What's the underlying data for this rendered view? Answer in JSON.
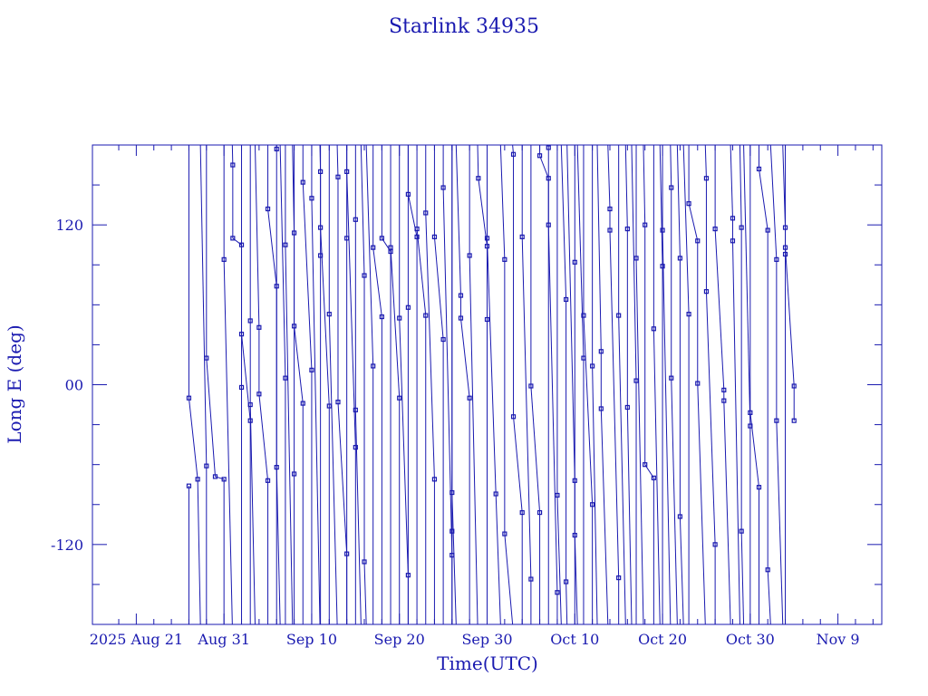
{
  "chart_data": {
    "type": "line",
    "title": "Starlink 34935",
    "xlabel": "Time(UTC)",
    "ylabel": "Long E (deg)",
    "xlim": [
      "2025-08-16",
      "2025-11-14"
    ],
    "ylim": [
      -180,
      180
    ],
    "x_ticks": [
      "2025 Aug 21",
      "Aug 31",
      "Sep 10",
      "Sep 20",
      "Sep 30",
      "Oct 10",
      "Oct 20",
      "Oct 30",
      "Nov 9"
    ],
    "y_ticks": [
      "-120",
      "00",
      "120"
    ],
    "color": "#1a1ab0",
    "grid": false,
    "series": [
      {
        "values": [
          [
            "2025-08-27",
            -76
          ],
          [
            "2025-08-27",
            -10
          ],
          [
            "2025-08-28",
            -71
          ],
          [
            "2025-08-29",
            -61
          ],
          [
            "2025-08-29",
            20
          ],
          [
            "2025-08-30",
            -69
          ],
          [
            "2025-08-31",
            -71
          ],
          [
            "2025-08-31",
            94
          ],
          [
            "2025-09-01",
            165
          ],
          [
            "2025-09-01",
            110
          ],
          [
            "2025-09-02",
            105
          ],
          [
            "2025-09-02",
            -2
          ],
          [
            "2025-09-02",
            38
          ],
          [
            "2025-09-03",
            -27
          ],
          [
            "2025-09-03",
            48
          ],
          [
            "2025-09-03",
            -15
          ],
          [
            "2025-09-04",
            43
          ],
          [
            "2025-09-04",
            -7
          ],
          [
            "2025-09-05",
            -72
          ],
          [
            "2025-09-05",
            132
          ],
          [
            "2025-09-06",
            74
          ],
          [
            "2025-09-06",
            177
          ],
          [
            "2025-09-06",
            -62
          ],
          [
            "2025-09-07",
            5
          ],
          [
            "2025-09-07",
            105
          ],
          [
            "2025-09-08",
            114
          ],
          [
            "2025-09-08",
            -67
          ],
          [
            "2025-09-08",
            44
          ],
          [
            "2025-09-09",
            -14
          ],
          [
            "2025-09-09",
            152
          ],
          [
            "2025-09-10",
            11
          ],
          [
            "2025-09-10",
            140
          ],
          [
            "2025-09-11",
            160
          ],
          [
            "2025-09-11",
            97
          ],
          [
            "2025-09-11",
            118
          ],
          [
            "2025-09-12",
            -16
          ],
          [
            "2025-09-12",
            53
          ],
          [
            "2025-09-13",
            156
          ],
          [
            "2025-09-13",
            -13
          ],
          [
            "2025-09-14",
            -127
          ],
          [
            "2025-09-14",
            110
          ],
          [
            "2025-09-14",
            160
          ],
          [
            "2025-09-15",
            -47
          ],
          [
            "2025-09-15",
            124
          ],
          [
            "2025-09-15",
            -19
          ],
          [
            "2025-09-16",
            82
          ],
          [
            "2025-09-16",
            -133
          ],
          [
            "2025-09-17",
            14
          ],
          [
            "2025-09-17",
            103
          ],
          [
            "2025-09-18",
            51
          ],
          [
            "2025-09-18",
            110
          ],
          [
            "2025-09-19",
            100
          ],
          [
            "2025-09-19",
            103
          ],
          [
            "2025-09-20",
            -10
          ],
          [
            "2025-09-20",
            50
          ],
          [
            "2025-09-21",
            -143
          ],
          [
            "2025-09-21",
            58
          ],
          [
            "2025-09-21",
            143
          ],
          [
            "2025-09-22",
            111
          ],
          [
            "2025-09-22",
            117
          ],
          [
            "2025-09-23",
            52
          ],
          [
            "2025-09-23",
            129
          ],
          [
            "2025-09-24",
            -71
          ],
          [
            "2025-09-24",
            111
          ],
          [
            "2025-09-25",
            34
          ],
          [
            "2025-09-25",
            148
          ],
          [
            "2025-09-26",
            -128
          ],
          [
            "2025-09-26",
            -110
          ],
          [
            "2025-09-26",
            -81
          ],
          [
            "2025-09-27",
            67
          ],
          [
            "2025-09-27",
            50
          ],
          [
            "2025-09-28",
            -10
          ],
          [
            "2025-09-28",
            97
          ],
          [
            "2025-09-29",
            155
          ],
          [
            "2025-09-30",
            104
          ],
          [
            "2025-09-30",
            49
          ],
          [
            "2025-09-30",
            110
          ],
          [
            "2025-10-01",
            -82
          ],
          [
            "2025-10-02",
            94
          ],
          [
            "2025-10-02",
            -112
          ],
          [
            "2025-10-03",
            173
          ],
          [
            "2025-10-03",
            -24
          ],
          [
            "2025-10-04",
            -96
          ],
          [
            "2025-10-04",
            111
          ],
          [
            "2025-10-05",
            -146
          ],
          [
            "2025-10-05",
            -1
          ],
          [
            "2025-10-06",
            -96
          ],
          [
            "2025-10-06",
            172
          ],
          [
            "2025-10-07",
            155
          ],
          [
            "2025-10-07",
            178
          ],
          [
            "2025-10-07",
            120
          ],
          [
            "2025-10-08",
            -156
          ],
          [
            "2025-10-08",
            -83
          ],
          [
            "2025-10-09",
            64
          ],
          [
            "2025-10-09",
            -148
          ],
          [
            "2025-10-10",
            -72
          ],
          [
            "2025-10-10",
            92
          ],
          [
            "2025-10-10",
            -113
          ],
          [
            "2025-10-11",
            20
          ],
          [
            "2025-10-11",
            52
          ],
          [
            "2025-10-12",
            -90
          ],
          [
            "2025-10-12",
            14
          ],
          [
            "2025-10-13",
            25
          ],
          [
            "2025-10-13",
            -18
          ],
          [
            "2025-10-14",
            132
          ],
          [
            "2025-10-14",
            116
          ],
          [
            "2025-10-15",
            -145
          ],
          [
            "2025-10-15",
            52
          ],
          [
            "2025-10-16",
            117
          ],
          [
            "2025-10-16",
            -17
          ],
          [
            "2025-10-17",
            3
          ],
          [
            "2025-10-17",
            95
          ],
          [
            "2025-10-18",
            120
          ],
          [
            "2025-10-18",
            -60
          ],
          [
            "2025-10-19",
            -70
          ],
          [
            "2025-10-19",
            42
          ],
          [
            "2025-10-20",
            89
          ],
          [
            "2025-10-20",
            116
          ],
          [
            "2025-10-21",
            148
          ],
          [
            "2025-10-21",
            5
          ],
          [
            "2025-10-22",
            95
          ],
          [
            "2025-10-22",
            -99
          ],
          [
            "2025-10-23",
            53
          ],
          [
            "2025-10-23",
            136
          ],
          [
            "2025-10-24",
            108
          ],
          [
            "2025-10-24",
            1
          ],
          [
            "2025-10-25",
            155
          ],
          [
            "2025-10-25",
            70
          ],
          [
            "2025-10-26",
            -120
          ],
          [
            "2025-10-26",
            117
          ],
          [
            "2025-10-27",
            -4
          ],
          [
            "2025-10-27",
            -12
          ],
          [
            "2025-10-28",
            125
          ],
          [
            "2025-10-28",
            108
          ],
          [
            "2025-10-29",
            118
          ],
          [
            "2025-10-29",
            -110
          ],
          [
            "2025-10-30",
            -31
          ],
          [
            "2025-10-30",
            -21
          ],
          [
            "2025-10-31",
            -77
          ],
          [
            "2025-10-31",
            162
          ],
          [
            "2025-11-01",
            116
          ],
          [
            "2025-11-01",
            -139
          ],
          [
            "2025-11-02",
            94
          ],
          [
            "2025-11-02",
            -27
          ],
          [
            "2025-11-03",
            118
          ],
          [
            "2025-11-03",
            98
          ],
          [
            "2025-11-03",
            103
          ],
          [
            "2025-11-04",
            -1
          ],
          [
            "2025-11-04",
            -27
          ]
        ]
      }
    ]
  }
}
